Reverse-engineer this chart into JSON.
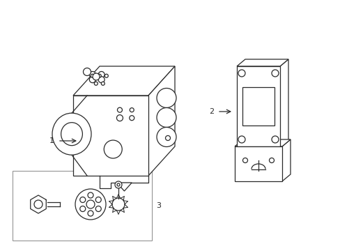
{
  "bg_color": "#ffffff",
  "lc": "#2a2a2a",
  "lw": 0.9,
  "figsize": [
    4.89,
    3.6
  ],
  "dpi": 100,
  "label1": "1",
  "label2": "2",
  "label3": "3"
}
